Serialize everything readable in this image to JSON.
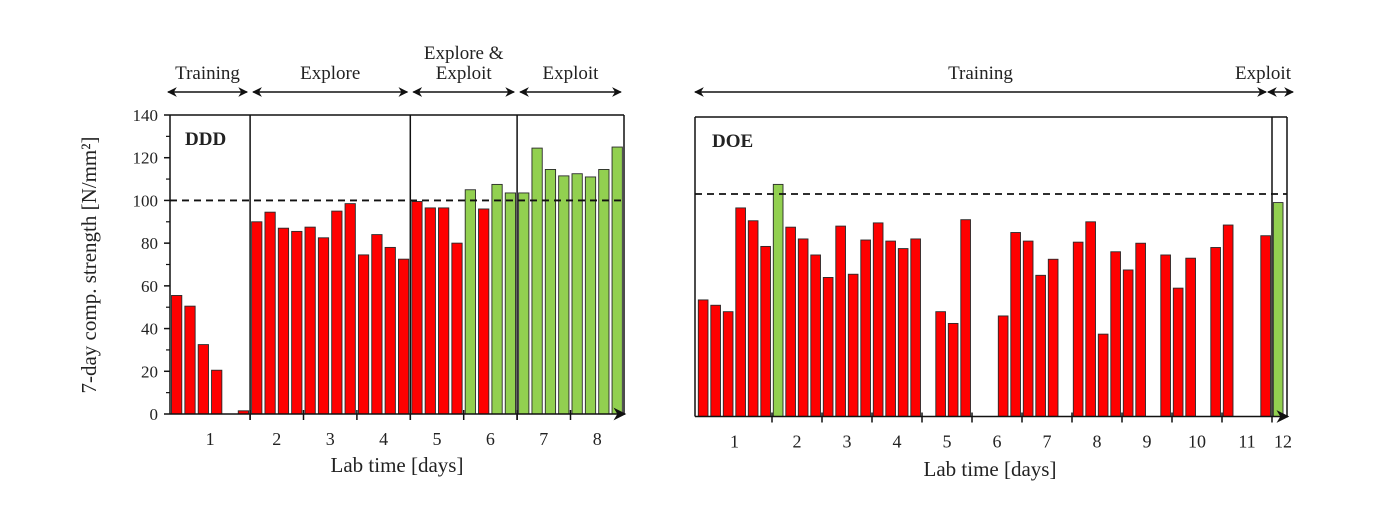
{
  "colors": {
    "red": "#ff0000",
    "green": "#92d050",
    "axis": "#000000",
    "text": "#222222"
  },
  "chart_data": [
    {
      "type": "bar",
      "title": "DDD",
      "xlabel": "Lab time [days]",
      "ylabel": "7-day comp. strength [N/mm²]",
      "ylim": [
        0,
        140
      ],
      "yticks": [
        0,
        20,
        40,
        60,
        80,
        100,
        120,
        140
      ],
      "ytick_labels": [
        "0",
        "20",
        "40",
        "60",
        "80",
        "100",
        "120",
        "140"
      ],
      "threshold": 100,
      "slot_count": 34,
      "day_ticks": [
        6,
        10,
        14,
        18,
        22,
        26,
        30
      ],
      "day_labels": [
        {
          "label": "1",
          "slot": 3
        },
        {
          "label": "2",
          "slot": 8
        },
        {
          "label": "3",
          "slot": 12
        },
        {
          "label": "4",
          "slot": 16
        },
        {
          "label": "5",
          "slot": 20
        },
        {
          "label": "6",
          "slot": 24
        },
        {
          "label": "7",
          "slot": 28
        },
        {
          "label": "8",
          "slot": 32
        }
      ],
      "dividers": [
        6,
        18,
        26
      ],
      "phases": [
        {
          "label": "Training",
          "from": 0,
          "to": 6
        },
        {
          "label": "Explore",
          "from": 6,
          "to": 18
        },
        {
          "label": "Explore &",
          "label2": "Exploit",
          "from": 18,
          "to": 26
        },
        {
          "label": "Exploit",
          "from": 26,
          "to": 34
        }
      ],
      "bars": [
        {
          "slot": 0,
          "value": 55.5,
          "color": "red"
        },
        {
          "slot": 1,
          "value": 50.5,
          "color": "red"
        },
        {
          "slot": 2,
          "value": 32.5,
          "color": "red"
        },
        {
          "slot": 3,
          "value": 20.5,
          "color": "red"
        },
        {
          "slot": 5,
          "value": 1.5,
          "color": "red"
        },
        {
          "slot": 6,
          "value": 90,
          "color": "red"
        },
        {
          "slot": 7,
          "value": 94.5,
          "color": "red"
        },
        {
          "slot": 8,
          "value": 87,
          "color": "red"
        },
        {
          "slot": 9,
          "value": 85.5,
          "color": "red"
        },
        {
          "slot": 10,
          "value": 87.5,
          "color": "red"
        },
        {
          "slot": 11,
          "value": 82.5,
          "color": "red"
        },
        {
          "slot": 12,
          "value": 95,
          "color": "red"
        },
        {
          "slot": 13,
          "value": 98.5,
          "color": "red"
        },
        {
          "slot": 14,
          "value": 74.5,
          "color": "red"
        },
        {
          "slot": 15,
          "value": 84,
          "color": "red"
        },
        {
          "slot": 16,
          "value": 78,
          "color": "red"
        },
        {
          "slot": 17,
          "value": 72.5,
          "color": "red"
        },
        {
          "slot": 18,
          "value": 99.5,
          "color": "red"
        },
        {
          "slot": 19,
          "value": 96.5,
          "color": "red"
        },
        {
          "slot": 20,
          "value": 96.5,
          "color": "red"
        },
        {
          "slot": 21,
          "value": 80,
          "color": "red"
        },
        {
          "slot": 22,
          "value": 105,
          "color": "green"
        },
        {
          "slot": 23,
          "value": 96,
          "color": "red"
        },
        {
          "slot": 24,
          "value": 107.5,
          "color": "green"
        },
        {
          "slot": 25,
          "value": 103.5,
          "color": "green"
        },
        {
          "slot": 26,
          "value": 103.5,
          "color": "green"
        },
        {
          "slot": 27,
          "value": 124.5,
          "color": "green"
        },
        {
          "slot": 28,
          "value": 114.5,
          "color": "green"
        },
        {
          "slot": 29,
          "value": 111.5,
          "color": "green"
        },
        {
          "slot": 30,
          "value": 112.5,
          "color": "green"
        },
        {
          "slot": 31,
          "value": 111,
          "color": "green"
        },
        {
          "slot": 32,
          "value": 114.5,
          "color": "green"
        },
        {
          "slot": 33,
          "value": 125,
          "color": "green"
        }
      ]
    },
    {
      "type": "bar",
      "title": "DOE",
      "xlabel": "Lab time [days]",
      "ylim": [
        0,
        140
      ],
      "threshold": 104,
      "slot_count": 47,
      "day_ticks": [
        6,
        10,
        14,
        18,
        22,
        26,
        30,
        34,
        38,
        42
      ],
      "day_labels": [
        {
          "label": "1",
          "slot": 3
        },
        {
          "label": "2",
          "slot": 8
        },
        {
          "label": "3",
          "slot": 12
        },
        {
          "label": "4",
          "slot": 16
        },
        {
          "label": "5",
          "slot": 20
        },
        {
          "label": "6",
          "slot": 24
        },
        {
          "label": "7",
          "slot": 28
        },
        {
          "label": "8",
          "slot": 32
        },
        {
          "label": "9",
          "slot": 36
        },
        {
          "label": "10",
          "slot": 40
        },
        {
          "label": "11",
          "slot": 44
        },
        {
          "label": "12",
          "slot": 47
        }
      ],
      "dividers": [
        46
      ],
      "phases": [
        {
          "label": "Training",
          "from": 0,
          "to": 45.5
        },
        {
          "label": "Exploit",
          "from": 45.6,
          "to": 48
        }
      ],
      "bars": [
        {
          "slot": 0,
          "value": 54.5,
          "color": "red"
        },
        {
          "slot": 1,
          "value": 52,
          "color": "red"
        },
        {
          "slot": 2,
          "value": 49,
          "color": "red"
        },
        {
          "slot": 3,
          "value": 97.5,
          "color": "red"
        },
        {
          "slot": 4,
          "value": 91.5,
          "color": "red"
        },
        {
          "slot": 5,
          "value": 79.5,
          "color": "red"
        },
        {
          "slot": 6,
          "value": 108.5,
          "color": "green"
        },
        {
          "slot": 7,
          "value": 88.5,
          "color": "red"
        },
        {
          "slot": 8,
          "value": 83,
          "color": "red"
        },
        {
          "slot": 9,
          "value": 75.5,
          "color": "red"
        },
        {
          "slot": 10,
          "value": 65,
          "color": "red"
        },
        {
          "slot": 11,
          "value": 89,
          "color": "red"
        },
        {
          "slot": 12,
          "value": 66.5,
          "color": "red"
        },
        {
          "slot": 13,
          "value": 82.5,
          "color": "red"
        },
        {
          "slot": 14,
          "value": 90.5,
          "color": "red"
        },
        {
          "slot": 15,
          "value": 82,
          "color": "red"
        },
        {
          "slot": 16,
          "value": 78.5,
          "color": "red"
        },
        {
          "slot": 17,
          "value": 83,
          "color": "red"
        },
        {
          "slot": 19,
          "value": 49,
          "color": "red"
        },
        {
          "slot": 20,
          "value": 43.5,
          "color": "red"
        },
        {
          "slot": 21,
          "value": 92,
          "color": "red"
        },
        {
          "slot": 24,
          "value": 47,
          "color": "red"
        },
        {
          "slot": 25,
          "value": 86,
          "color": "red"
        },
        {
          "slot": 26,
          "value": 82,
          "color": "red"
        },
        {
          "slot": 27,
          "value": 66,
          "color": "red"
        },
        {
          "slot": 28,
          "value": 73.5,
          "color": "red"
        },
        {
          "slot": 30,
          "value": 81.5,
          "color": "red"
        },
        {
          "slot": 31,
          "value": 91,
          "color": "red"
        },
        {
          "slot": 32,
          "value": 38.5,
          "color": "red"
        },
        {
          "slot": 33,
          "value": 77,
          "color": "red"
        },
        {
          "slot": 34,
          "value": 68.5,
          "color": "red"
        },
        {
          "slot": 35,
          "value": 81,
          "color": "red"
        },
        {
          "slot": 37,
          "value": 75.5,
          "color": "red"
        },
        {
          "slot": 38,
          "value": 60,
          "color": "red"
        },
        {
          "slot": 39,
          "value": 74,
          "color": "red"
        },
        {
          "slot": 41,
          "value": 79,
          "color": "red"
        },
        {
          "slot": 42,
          "value": 89.5,
          "color": "red"
        },
        {
          "slot": 45,
          "value": 84.5,
          "color": "red"
        },
        {
          "slot": 46,
          "value": 100,
          "color": "green"
        }
      ]
    }
  ]
}
